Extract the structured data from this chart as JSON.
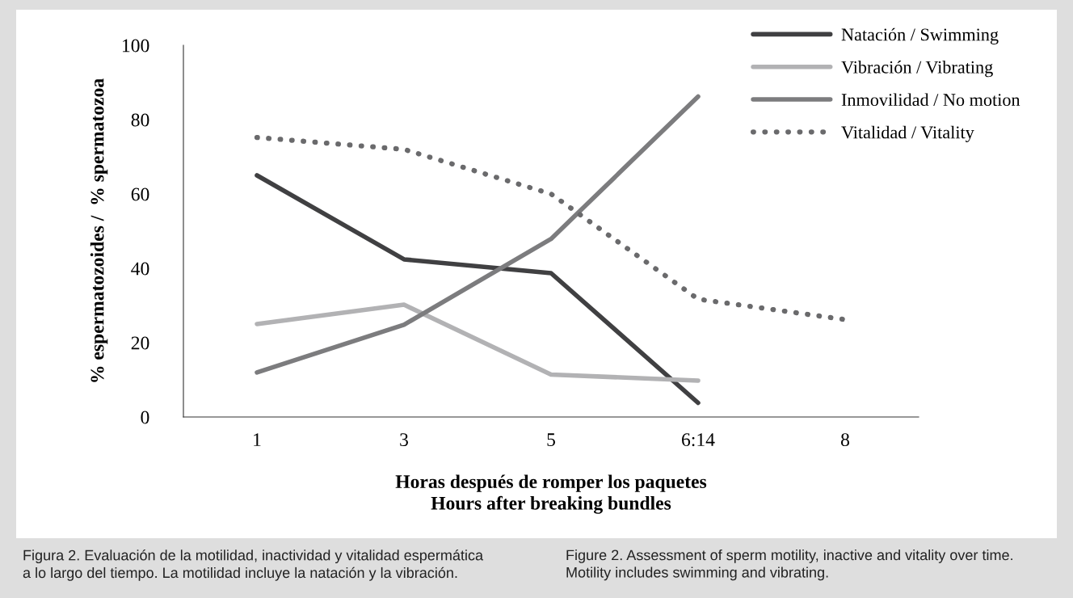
{
  "chart_data": {
    "type": "line",
    "xlabel": "Horas después de romper los paquetes\nHours after breaking bundles",
    "ylabel": "% espermatozoides /  % spermatozoa",
    "categories": [
      "1",
      "3",
      "5",
      "6:14",
      "8"
    ],
    "series": [
      {
        "name": "Natación / Swimming",
        "color": "#404042",
        "line_style": "solid",
        "values": [
          65,
          42.4,
          38.7,
          3.8,
          null
        ]
      },
      {
        "name": "Vibración / Vibrating",
        "color": "#b2b2b4",
        "line_style": "solid",
        "values": [
          25,
          30.2,
          11.4,
          9.8,
          null
        ]
      },
      {
        "name": "Inmovilidad / No motion",
        "color": "#7c7c7e",
        "line_style": "solid",
        "values": [
          12,
          24.8,
          47.9,
          86.2,
          null
        ]
      },
      {
        "name": "Vitalidad / Vitality",
        "color": "#6a6a6c",
        "line_style": "dotted",
        "values": [
          75.2,
          72,
          60,
          31.7,
          26.2
        ]
      }
    ],
    "ylim": [
      0,
      100
    ],
    "yticks": [
      0,
      20,
      40,
      60,
      80,
      100
    ],
    "grid": false,
    "legend": "top right",
    "marker": "none",
    "annotations": [
      "Figura 2. Evaluación de la motilidad, inactividad y vitalidad espermática\na lo largo del tiempo. La motilidad incluye la natación y la vibración.",
      "Figure 2. Assessment of sperm motility, inactive and vitality over time.\nMotility includes swimming and vibrating."
    ]
  }
}
